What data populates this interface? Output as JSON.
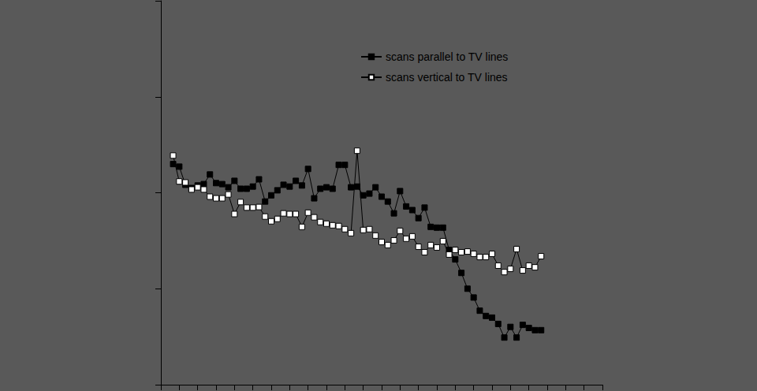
{
  "chart_data": {
    "type": "line",
    "series": [
      {
        "name": "scans parallel to TV lines",
        "color": "#000000",
        "marker": "square",
        "x": [
          2,
          3,
          4,
          5,
          6,
          7,
          8,
          9,
          10,
          11,
          12,
          13,
          14,
          15,
          16,
          17,
          18,
          19,
          20,
          21,
          22,
          23,
          24,
          25,
          26,
          27,
          28,
          29,
          30,
          31,
          32,
          33,
          34,
          35,
          36,
          37,
          38,
          39,
          40,
          41,
          42,
          43,
          44,
          45,
          46,
          47,
          48,
          49,
          50,
          51,
          52,
          53,
          54,
          55,
          56,
          57,
          58,
          59,
          60,
          61,
          62
        ],
        "values": [
          199,
          187,
          121,
          112,
          119,
          123,
          155,
          126,
          123,
          114,
          133,
          110,
          110,
          116,
          138,
          81,
          94,
          106,
          121,
          116,
          133,
          119,
          177,
          87.5,
          110,
          114,
          110,
          195,
          195,
          114,
          116,
          94,
          98,
          114,
          91,
          81,
          61,
          104,
          72,
          66,
          54.4,
          70,
          44.1,
          43.3,
          43.3,
          25.4,
          20.2,
          14.6,
          10,
          8.1,
          5.9,
          5.2,
          5.0,
          4.3,
          3.1,
          4.0,
          3.1,
          4.2,
          3.9,
          3.7,
          3.7
        ]
      },
      {
        "name": "scans vertical to TV lines",
        "color": "#000000",
        "marker": "square-open",
        "x": [
          2,
          3,
          4,
          5,
          6,
          7,
          8,
          9,
          10,
          11,
          12,
          13,
          14,
          15,
          16,
          17,
          18,
          19,
          20,
          21,
          22,
          23,
          24,
          25,
          26,
          27,
          28,
          29,
          30,
          31,
          32,
          33,
          34,
          35,
          36,
          37,
          38,
          39,
          40,
          41,
          42,
          43,
          44,
          45,
          46,
          47,
          48,
          49,
          50,
          51,
          52,
          53,
          54,
          55,
          56,
          57,
          58,
          59,
          60,
          61,
          62
        ],
        "values": [
          244,
          131,
          128,
          108,
          114,
          108,
          91,
          87.5,
          87.5,
          96,
          60,
          80,
          70,
          70,
          71,
          56.5,
          50.4,
          53.4,
          61,
          60,
          60,
          44.1,
          62,
          55.5,
          49.5,
          47.6,
          45.8,
          45,
          41.7,
          37.9,
          274,
          40.9,
          41.7,
          35.8,
          30.7,
          28.5,
          31.9,
          40.1,
          33.2,
          35.1,
          27.4,
          24,
          28.5,
          26.9,
          31.3,
          22.7,
          25.4,
          24,
          24.4,
          23.1,
          21.4,
          21.4,
          23.1,
          17.4,
          14.9,
          16.1,
          25.9,
          15.5,
          17.4,
          16.7,
          21.8
        ]
      }
    ],
    "xlim": [
      0,
      72
    ],
    "xticks": [
      0,
      3,
      6,
      9,
      12,
      15,
      18,
      21,
      24,
      27,
      30,
      33,
      36,
      39,
      42,
      45,
      48,
      51,
      54,
      57,
      60,
      63,
      66,
      69,
      72
    ],
    "ylim": [
      1,
      10000
    ],
    "yticks": [
      1,
      10,
      100,
      1000,
      10000
    ],
    "log": "y",
    "grid": false,
    "legend": "top",
    "tick_labels": false
  }
}
